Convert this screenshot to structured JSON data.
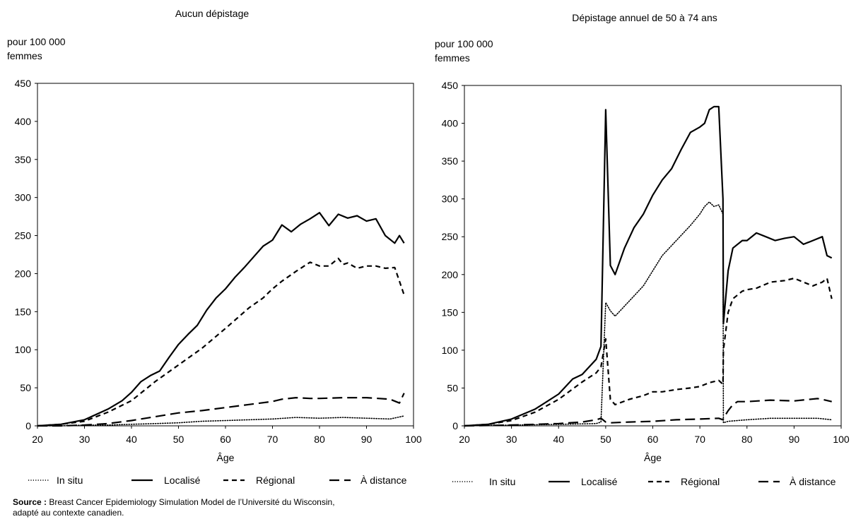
{
  "chart_data": [
    {
      "type": "line",
      "title": "Aucun dépistage",
      "ylabel": "pour 100 000\nfemmes",
      "xlabel": "Âge",
      "xlim": [
        20,
        100
      ],
      "ylim": [
        0,
        450
      ],
      "xticks": [
        "20",
        "30",
        "40",
        "50",
        "60",
        "70",
        "80",
        "90",
        "100"
      ],
      "yticks": [
        "0",
        "50",
        "100",
        "150",
        "200",
        "250",
        "300",
        "350",
        "400",
        "450"
      ],
      "grid": false,
      "legend_position": "bottom",
      "series": [
        {
          "name": "In situ",
          "style": "dotted",
          "x": [
            20,
            25,
            30,
            35,
            40,
            45,
            50,
            55,
            60,
            65,
            70,
            75,
            80,
            85,
            90,
            95,
            98
          ],
          "y": [
            0,
            0,
            1,
            1,
            2,
            3,
            4,
            6,
            7,
            8,
            9,
            11,
            10,
            11,
            10,
            9,
            13
          ]
        },
        {
          "name": "Localisé",
          "style": "solid",
          "x": [
            20,
            25,
            30,
            35,
            38,
            40,
            42,
            44,
            46,
            48,
            50,
            52,
            54,
            56,
            58,
            60,
            62,
            64,
            66,
            68,
            70,
            72,
            74,
            76,
            78,
            80,
            82,
            84,
            86,
            88,
            90,
            92,
            94,
            96,
            97,
            98
          ],
          "y": [
            0,
            2,
            8,
            22,
            33,
            44,
            58,
            66,
            72,
            90,
            107,
            120,
            132,
            152,
            168,
            180,
            195,
            208,
            222,
            236,
            244,
            264,
            255,
            265,
            272,
            280,
            263,
            278,
            273,
            276,
            269,
            272,
            250,
            240,
            250,
            240
          ]
        },
        {
          "name": "Régional",
          "style": "dashed",
          "x": [
            20,
            25,
            30,
            35,
            40,
            45,
            50,
            55,
            60,
            65,
            68,
            70,
            72,
            75,
            78,
            80,
            82,
            84,
            85,
            86,
            88,
            90,
            92,
            94,
            96,
            97,
            98
          ],
          "y": [
            0,
            2,
            6,
            18,
            33,
            58,
            80,
            102,
            128,
            155,
            168,
            180,
            190,
            203,
            215,
            210,
            210,
            220,
            212,
            214,
            207,
            210,
            210,
            207,
            208,
            190,
            172
          ]
        },
        {
          "name": "À distance",
          "style": "longdash",
          "x": [
            20,
            25,
            30,
            35,
            40,
            45,
            50,
            55,
            60,
            65,
            70,
            72,
            75,
            78,
            80,
            85,
            90,
            95,
            97,
            98
          ],
          "y": [
            0,
            0,
            1,
            3,
            7,
            12,
            17,
            20,
            24,
            28,
            32,
            35,
            37,
            36,
            36,
            37,
            37,
            35,
            30,
            43
          ]
        }
      ]
    },
    {
      "type": "line",
      "title": "Dépistage annuel de 50 à 74 ans",
      "ylabel": "pour 100 000\nfemmes",
      "xlabel": "Âge",
      "xlim": [
        20,
        100
      ],
      "ylim": [
        0,
        450
      ],
      "xticks": [
        "20",
        "30",
        "40",
        "50",
        "60",
        "70",
        "80",
        "90",
        "100"
      ],
      "yticks": [
        "0",
        "50",
        "100",
        "150",
        "200",
        "250",
        "300",
        "350",
        "400",
        "450"
      ],
      "grid": false,
      "legend_position": "bottom",
      "series": [
        {
          "name": "In situ",
          "style": "dotted",
          "x": [
            20,
            30,
            40,
            48,
            49,
            50,
            51,
            52,
            55,
            58,
            60,
            62,
            65,
            68,
            70,
            71,
            72,
            73,
            74,
            74.9,
            75,
            76,
            80,
            85,
            90,
            95,
            98
          ],
          "y": [
            0,
            1,
            2,
            3,
            5,
            163,
            152,
            145,
            165,
            185,
            205,
            225,
            245,
            265,
            280,
            290,
            296,
            290,
            292,
            280,
            4,
            6,
            8,
            10,
            10,
            10,
            8
          ]
        },
        {
          "name": "Localisé",
          "style": "solid",
          "x": [
            20,
            25,
            30,
            35,
            40,
            43,
            45,
            48,
            49,
            50,
            51,
            52,
            54,
            56,
            58,
            60,
            62,
            64,
            66,
            68,
            70,
            71,
            72,
            73,
            74,
            74.9,
            75,
            76,
            77,
            79,
            80,
            82,
            84,
            86,
            88,
            90,
            92,
            94,
            96,
            97,
            98
          ],
          "y": [
            0,
            2,
            9,
            22,
            42,
            62,
            68,
            88,
            105,
            418,
            212,
            200,
            235,
            262,
            280,
            305,
            325,
            340,
            365,
            388,
            395,
            400,
            418,
            422,
            422,
            300,
            135,
            205,
            235,
            245,
            245,
            255,
            250,
            245,
            248,
            250,
            240,
            245,
            250,
            225,
            222
          ]
        },
        {
          "name": "Régional",
          "style": "dashed",
          "x": [
            20,
            25,
            30,
            35,
            40,
            45,
            48,
            49,
            50,
            51,
            52,
            55,
            58,
            60,
            62,
            65,
            68,
            70,
            72,
            74,
            74.9,
            75,
            76,
            77,
            79,
            80,
            82,
            85,
            88,
            90,
            92,
            94,
            96,
            97,
            98
          ],
          "y": [
            0,
            2,
            7,
            18,
            35,
            58,
            70,
            78,
            115,
            35,
            28,
            35,
            40,
            45,
            45,
            48,
            50,
            52,
            57,
            60,
            55,
            100,
            150,
            168,
            178,
            180,
            182,
            190,
            192,
            195,
            190,
            185,
            190,
            195,
            168
          ]
        },
        {
          "name": "À distance",
          "style": "longdash",
          "x": [
            20,
            30,
            40,
            45,
            48,
            49,
            50,
            51,
            55,
            60,
            65,
            70,
            74,
            74.9,
            75,
            76,
            77,
            78,
            80,
            85,
            90,
            95,
            96,
            98
          ],
          "y": [
            0,
            1,
            3,
            5,
            8,
            10,
            5,
            4,
            5,
            6,
            8,
            9,
            10,
            8,
            10,
            20,
            28,
            32,
            32,
            34,
            33,
            36,
            35,
            32
          ]
        }
      ]
    }
  ],
  "source": {
    "label": "Source :",
    "text": " Breast Cancer Epidemiology Simulation Model de l’Université du Wisconsin,",
    "text2": "adapté au contexte canadien."
  }
}
